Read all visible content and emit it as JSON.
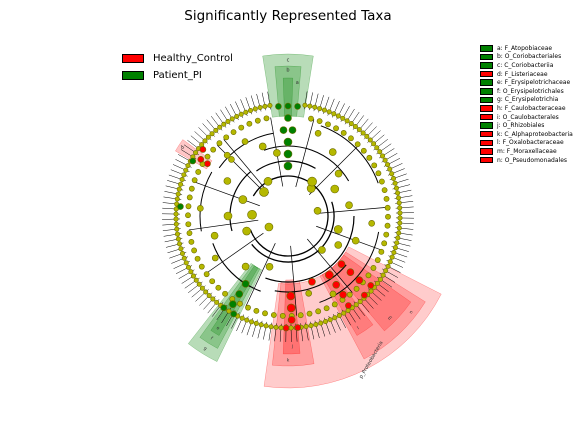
{
  "title": "Significantly Represented Taxa",
  "groups": [
    {
      "name": "Healthy_Control",
      "color": "#ff0000"
    },
    {
      "name": "Patient_PI",
      "color": "#008000"
    }
  ],
  "taxa_key": [
    {
      "label": "a: F_Atopobiaceae",
      "group": "Patient_PI"
    },
    {
      "label": "b: O_Coriobacteriales",
      "group": "Patient_PI"
    },
    {
      "label": "c: C_Coriobacteriia",
      "group": "Patient_PI"
    },
    {
      "label": "d: F_Listeriaceae",
      "group": "Healthy_Control"
    },
    {
      "label": "e: F_Erysipelotrichaceae",
      "group": "Patient_PI"
    },
    {
      "label": "f: O_Erysipelotrichales",
      "group": "Patient_PI"
    },
    {
      "label": "g: C_Erysipelotrichia",
      "group": "Patient_PI"
    },
    {
      "label": "h: F_Caulobacteraceae",
      "group": "Healthy_Control"
    },
    {
      "label": "i: O_Caulobacterales",
      "group": "Healthy_Control"
    },
    {
      "label": "j: O_Rhizobiales",
      "group": "Patient_PI"
    },
    {
      "label": "k: C_Alphaproteobacteria",
      "group": "Healthy_Control"
    },
    {
      "label": "l: F_Oxalobacteraceae",
      "group": "Healthy_Control"
    },
    {
      "label": "m: F_Moraxellaceae",
      "group": "Healthy_Control"
    },
    {
      "label": "n: O_Pseudomonadales",
      "group": "Healthy_Control"
    }
  ],
  "wedge_labels": {
    "c": "c",
    "b": "b",
    "a": "a",
    "d": "d",
    "j": "j",
    "k": "k",
    "l": "l",
    "m": "m",
    "n": "n",
    "e": "e",
    "f": "f",
    "g": "g",
    "p_proteobacteria": "p_Proteobacteria"
  },
  "colors": {
    "node_default": "#b5b800",
    "node_stroke": "#6b6b00",
    "red": "#ff0000",
    "green": "#008000",
    "red_shade": "#ff0000",
    "green_shade": "#008000"
  }
}
